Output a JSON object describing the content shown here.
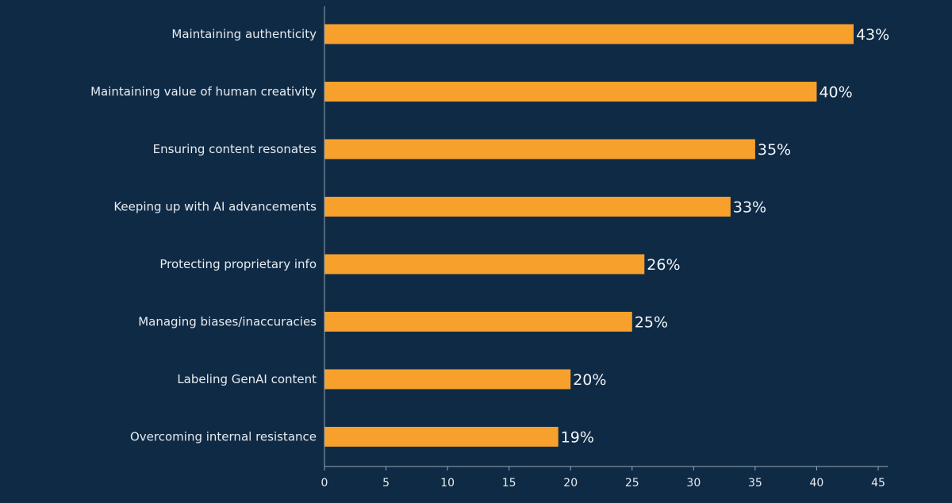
{
  "colors": {
    "background": "#0f2a45",
    "bar": "#f7a12c",
    "axis": "#9aa6b2",
    "text": "#e6ebef"
  },
  "chart_data": {
    "type": "bar",
    "orientation": "horizontal",
    "title": "",
    "xlabel": "",
    "ylabel": "",
    "categories": [
      "Maintaining authenticity",
      "Maintaining value of human creativity",
      "Ensuring content resonates",
      "Keeping up with AI advancements",
      "Protecting proprietary info",
      "Managing biases/inaccuracies",
      "Labeling GenAI content",
      "Overcoming internal resistance"
    ],
    "values": [
      43,
      40,
      35,
      33,
      26,
      25,
      20,
      19
    ],
    "value_labels": [
      "43%",
      "40%",
      "35%",
      "33%",
      "26%",
      "25%",
      "20%",
      "19%"
    ],
    "xlim": [
      0,
      45
    ],
    "xticks": [
      0,
      5,
      10,
      15,
      20,
      25,
      30,
      35,
      40,
      45
    ],
    "xtick_labels": [
      "0",
      "5",
      "10",
      "15",
      "20",
      "25",
      "30",
      "35",
      "40",
      "45"
    ],
    "grid": false,
    "legend": "none"
  }
}
